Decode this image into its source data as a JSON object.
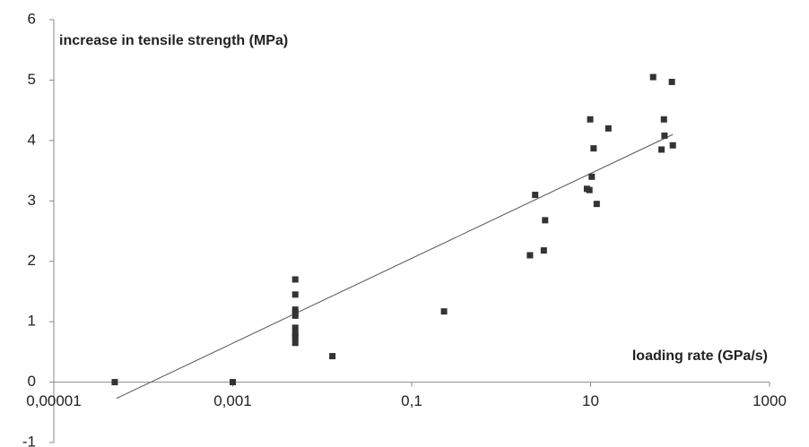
{
  "chart_data": {
    "type": "scatter",
    "y_label": "increase in tensile strength (MPa)",
    "x_label": "loading rate (GPa/s)",
    "x_log": true,
    "xlim": [
      1e-05,
      1000
    ],
    "xticks": [
      {
        "value": 1e-05,
        "label": "0,00001"
      },
      {
        "value": 0.001,
        "label": "0,001"
      },
      {
        "value": 0.1,
        "label": "0,1"
      },
      10,
      1000
    ],
    "ylim": [
      -1,
      6
    ],
    "yticks": [
      -1,
      0,
      1,
      2,
      3,
      4,
      5,
      6
    ],
    "color": "#333333",
    "x": [
      4.8e-05,
      0.001,
      0.005,
      0.005,
      0.005,
      0.005,
      0.005,
      0.005,
      0.005,
      0.005,
      0.005,
      0.013,
      0.23,
      2.1,
      2.4,
      3.0,
      3.1,
      9.1,
      9.7,
      11.7,
      9.9,
      10.3,
      10.8,
      15.8,
      50,
      81,
      66,
      67,
      62,
      83
    ],
    "y": [
      0,
      0,
      1.7,
      1.45,
      1.2,
      1.15,
      1.1,
      0.9,
      0.8,
      0.75,
      0.65,
      0.43,
      1.17,
      2.1,
      3.1,
      2.18,
      2.68,
      3.2,
      3.18,
      2.95,
      4.35,
      3.4,
      3.87,
      4.2,
      5.05,
      4.97,
      4.35,
      4.08,
      3.85,
      3.92
    ],
    "trendline": {
      "x": [
        5e-05,
        83
      ],
      "y": [
        -0.27,
        4.1
      ],
      "color": "#555555"
    }
  }
}
